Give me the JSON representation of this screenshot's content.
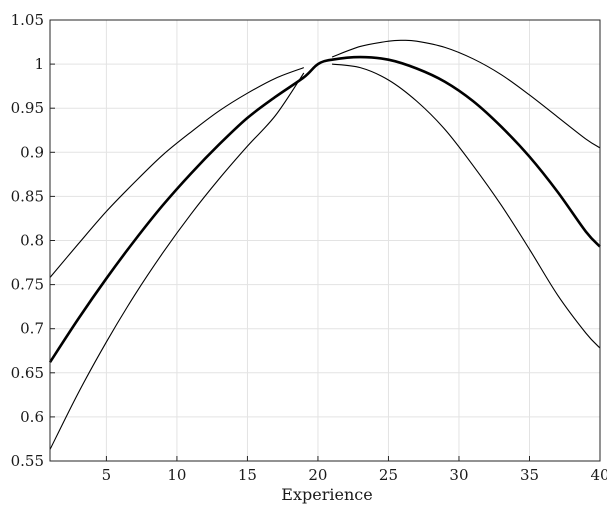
{
  "chart_data": {
    "type": "line",
    "title": "",
    "xlabel": "Experience",
    "ylabel": "",
    "xlim": [
      1,
      40
    ],
    "ylim": [
      0.55,
      1.05
    ],
    "grid": true,
    "x_ticks": [
      5,
      10,
      15,
      20,
      25,
      30,
      35,
      40
    ],
    "y_ticks": [
      0.55,
      0.6,
      0.65,
      0.7,
      0.75,
      0.8,
      0.85,
      0.9,
      0.95,
      1,
      1.05
    ],
    "x_tick_labels": [
      "5",
      "10",
      "15",
      "20",
      "25",
      "30",
      "35",
      "40"
    ],
    "y_tick_labels": [
      "0.55",
      "0.6",
      "0.65",
      "0.7",
      "0.75",
      "0.8",
      "0.85",
      "0.9",
      "0.95",
      "1",
      "1.05"
    ],
    "series": [
      {
        "style": "thick",
        "x": [
          1,
          3,
          5,
          7,
          9,
          11,
          13,
          15,
          17,
          19,
          20,
          21,
          23,
          25,
          27,
          29,
          31,
          33,
          35,
          37,
          39,
          40
        ],
        "y": [
          0.662,
          0.711,
          0.757,
          0.8,
          0.84,
          0.876,
          0.909,
          0.939,
          0.963,
          0.985,
          1.0,
          1.005,
          1.008,
          1.005,
          0.995,
          0.98,
          0.958,
          0.929,
          0.895,
          0.855,
          0.81,
          0.793
        ]
      },
      {
        "style": "thin",
        "x": [
          1,
          3,
          5,
          7,
          9,
          11,
          13,
          15,
          17,
          19
        ],
        "y": [
          0.758,
          0.796,
          0.833,
          0.866,
          0.897,
          0.923,
          0.947,
          0.967,
          0.984,
          0.996
        ]
      },
      {
        "style": "thin",
        "x": [
          1,
          3,
          5,
          7,
          9,
          11,
          13,
          15,
          17,
          19
        ],
        "y": [
          0.563,
          0.627,
          0.685,
          0.738,
          0.786,
          0.83,
          0.87,
          0.907,
          0.942,
          0.99
        ]
      },
      {
        "style": "thin",
        "x": [
          21,
          23,
          25,
          26,
          27,
          29,
          31,
          33,
          35,
          37,
          39,
          40
        ],
        "y": [
          1.008,
          1.02,
          1.026,
          1.027,
          1.026,
          1.019,
          1.006,
          0.988,
          0.965,
          0.94,
          0.915,
          0.905
        ]
      },
      {
        "style": "thin",
        "x": [
          21,
          23,
          25,
          27,
          29,
          31,
          33,
          35,
          37,
          39,
          40
        ],
        "y": [
          1.0,
          0.996,
          0.982,
          0.958,
          0.926,
          0.885,
          0.84,
          0.79,
          0.738,
          0.695,
          0.678
        ]
      }
    ],
    "colors": {
      "line": "#000000",
      "grid": "#e3e3e3",
      "axis": "#262626"
    }
  }
}
